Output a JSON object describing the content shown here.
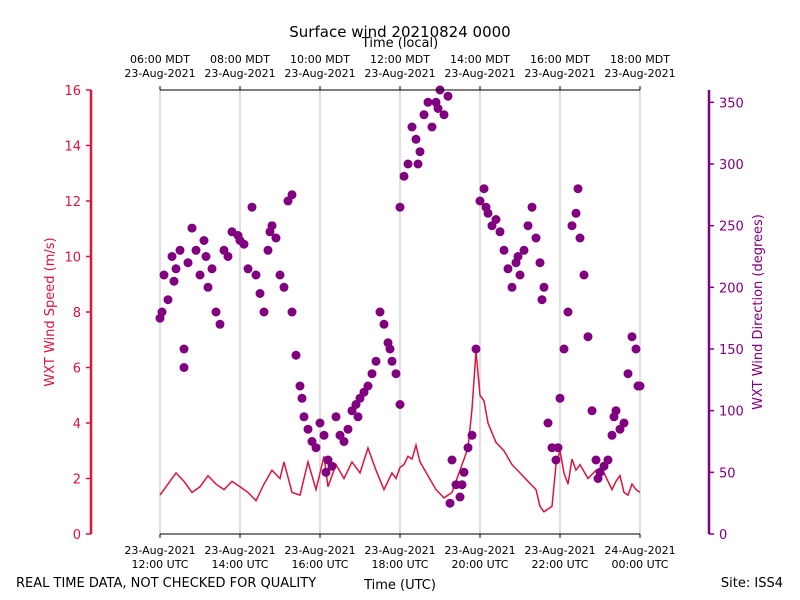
{
  "chart_data": {
    "type": "line+scatter",
    "title": "Surface wind 20210824 0000",
    "top_axis_label": "Time (local)",
    "top_ticks": [
      {
        "h": 12,
        "l1": "06:00 MDT",
        "l2": "23-Aug-2021"
      },
      {
        "h": 14,
        "l1": "08:00 MDT",
        "l2": "23-Aug-2021"
      },
      {
        "h": 16,
        "l1": "10:00 MDT",
        "l2": "23-Aug-2021"
      },
      {
        "h": 18,
        "l1": "12:00 MDT",
        "l2": "23-Aug-2021"
      },
      {
        "h": 20,
        "l1": "14:00 MDT",
        "l2": "23-Aug-2021"
      },
      {
        "h": 22,
        "l1": "16:00 MDT",
        "l2": "23-Aug-2021"
      },
      {
        "h": 24,
        "l1": "18:00 MDT",
        "l2": "23-Aug-2021"
      }
    ],
    "bottom_ticks": [
      {
        "h": 12,
        "l1": "23-Aug-2021",
        "l2": "12:00 UTC"
      },
      {
        "h": 14,
        "l1": "23-Aug-2021",
        "l2": "14:00 UTC"
      },
      {
        "h": 16,
        "l1": "23-Aug-2021",
        "l2": "16:00 UTC"
      },
      {
        "h": 18,
        "l1": "23-Aug-2021",
        "l2": "18:00 UTC"
      },
      {
        "h": 20,
        "l1": "23-Aug-2021",
        "l2": "20:00 UTC"
      },
      {
        "h": 22,
        "l1": "23-Aug-2021",
        "l2": "22:00 UTC"
      },
      {
        "h": 24,
        "l1": "24-Aug-2021",
        "l2": "00:00 UTC"
      }
    ],
    "xlabel": "Time (UTC)",
    "xlim": [
      12,
      24
    ],
    "y_left": {
      "label": "WXT Wind Speed (m/s)",
      "ylim": [
        0,
        16
      ],
      "ticks": [
        0,
        2,
        4,
        6,
        8,
        10,
        12,
        14,
        16
      ],
      "color": "#dc143c"
    },
    "y_right": {
      "label": "WXT Wind Direction (degrees)",
      "ylim": [
        0,
        360
      ],
      "ticks": [
        0,
        50,
        100,
        150,
        200,
        250,
        300,
        350
      ],
      "color": "#800080"
    },
    "series": [
      {
        "name": "WXT Wind Speed",
        "axis": "left",
        "style": "line",
        "color": "#dc143c",
        "points": [
          [
            12.0,
            1.4
          ],
          [
            12.2,
            1.8
          ],
          [
            12.4,
            2.2
          ],
          [
            12.6,
            1.9
          ],
          [
            12.8,
            1.5
          ],
          [
            13.0,
            1.7
          ],
          [
            13.2,
            2.1
          ],
          [
            13.4,
            1.8
          ],
          [
            13.6,
            1.6
          ],
          [
            13.8,
            1.9
          ],
          [
            14.0,
            1.7
          ],
          [
            14.2,
            1.5
          ],
          [
            14.4,
            1.2
          ],
          [
            14.6,
            1.8
          ],
          [
            14.8,
            2.3
          ],
          [
            15.0,
            2.0
          ],
          [
            15.1,
            2.6
          ],
          [
            15.3,
            1.5
          ],
          [
            15.5,
            1.4
          ],
          [
            15.7,
            2.6
          ],
          [
            15.9,
            1.6
          ],
          [
            16.1,
            2.8
          ],
          [
            16.2,
            1.7
          ],
          [
            16.4,
            2.5
          ],
          [
            16.6,
            2.0
          ],
          [
            16.8,
            2.6
          ],
          [
            17.0,
            2.2
          ],
          [
            17.2,
            3.1
          ],
          [
            17.4,
            2.3
          ],
          [
            17.6,
            1.6
          ],
          [
            17.8,
            2.2
          ],
          [
            17.9,
            2.0
          ],
          [
            18.0,
            2.4
          ],
          [
            18.1,
            2.5
          ],
          [
            18.2,
            2.8
          ],
          [
            18.3,
            2.7
          ],
          [
            18.4,
            3.2
          ],
          [
            18.5,
            2.6
          ],
          [
            18.7,
            2.1
          ],
          [
            18.9,
            1.6
          ],
          [
            19.1,
            1.3
          ],
          [
            19.3,
            1.5
          ],
          [
            19.5,
            2.3
          ],
          [
            19.6,
            2.7
          ],
          [
            19.7,
            3.1
          ],
          [
            19.8,
            4.5
          ],
          [
            19.9,
            6.6
          ],
          [
            20.0,
            5.0
          ],
          [
            20.1,
            4.8
          ],
          [
            20.2,
            4.0
          ],
          [
            20.4,
            3.3
          ],
          [
            20.6,
            3.0
          ],
          [
            20.8,
            2.5
          ],
          [
            21.0,
            2.2
          ],
          [
            21.2,
            1.9
          ],
          [
            21.4,
            1.6
          ],
          [
            21.5,
            1.0
          ],
          [
            21.6,
            0.8
          ],
          [
            21.7,
            0.9
          ],
          [
            21.8,
            1.0
          ],
          [
            21.9,
            2.5
          ],
          [
            22.0,
            3.0
          ],
          [
            22.1,
            2.2
          ],
          [
            22.2,
            1.8
          ],
          [
            22.3,
            2.7
          ],
          [
            22.4,
            2.3
          ],
          [
            22.5,
            2.5
          ],
          [
            22.7,
            2.0
          ],
          [
            22.9,
            2.3
          ],
          [
            23.1,
            2.2
          ],
          [
            23.3,
            1.6
          ],
          [
            23.4,
            1.9
          ],
          [
            23.5,
            2.1
          ],
          [
            23.6,
            1.5
          ],
          [
            23.7,
            1.4
          ],
          [
            23.8,
            1.8
          ],
          [
            23.9,
            1.6
          ],
          [
            24.0,
            1.5
          ]
        ]
      },
      {
        "name": "WXT Wind Direction",
        "axis": "right",
        "style": "scatter",
        "color": "#800080",
        "points": [
          [
            12.0,
            175
          ],
          [
            12.1,
            210
          ],
          [
            12.2,
            190
          ],
          [
            12.3,
            225
          ],
          [
            12.4,
            215
          ],
          [
            12.5,
            230
          ],
          [
            12.6,
            150
          ],
          [
            12.6,
            135
          ],
          [
            12.7,
            220
          ],
          [
            12.8,
            248
          ],
          [
            12.9,
            230
          ],
          [
            13.0,
            210
          ],
          [
            13.1,
            238
          ],
          [
            13.2,
            200
          ],
          [
            13.3,
            215
          ],
          [
            13.4,
            180
          ],
          [
            13.5,
            170
          ],
          [
            13.6,
            230
          ],
          [
            13.7,
            225
          ],
          [
            13.8,
            245
          ],
          [
            14.0,
            238
          ],
          [
            14.1,
            235
          ],
          [
            14.2,
            215
          ],
          [
            14.3,
            265
          ],
          [
            14.4,
            210
          ],
          [
            14.5,
            195
          ],
          [
            14.6,
            180
          ],
          [
            14.7,
            230
          ],
          [
            14.8,
            250
          ],
          [
            14.9,
            240
          ],
          [
            15.0,
            210
          ],
          [
            15.1,
            200
          ],
          [
            15.2,
            270
          ],
          [
            15.3,
            275
          ],
          [
            15.3,
            180
          ],
          [
            15.4,
            145
          ],
          [
            15.5,
            120
          ],
          [
            15.6,
            95
          ],
          [
            15.7,
            85
          ],
          [
            15.8,
            75
          ],
          [
            15.9,
            70
          ],
          [
            16.0,
            90
          ],
          [
            16.1,
            80
          ],
          [
            16.2,
            60
          ],
          [
            16.3,
            55
          ],
          [
            16.4,
            95
          ],
          [
            16.5,
            80
          ],
          [
            16.6,
            75
          ],
          [
            16.7,
            85
          ],
          [
            16.8,
            100
          ],
          [
            16.9,
            105
          ],
          [
            17.0,
            110
          ],
          [
            17.1,
            115
          ],
          [
            17.2,
            120
          ],
          [
            17.3,
            130
          ],
          [
            17.4,
            140
          ],
          [
            17.5,
            180
          ],
          [
            17.6,
            170
          ],
          [
            17.7,
            155
          ],
          [
            17.8,
            140
          ],
          [
            17.9,
            130
          ],
          [
            18.0,
            105
          ],
          [
            18.0,
            265
          ],
          [
            18.1,
            290
          ],
          [
            18.2,
            300
          ],
          [
            18.3,
            330
          ],
          [
            18.4,
            320
          ],
          [
            18.5,
            310
          ],
          [
            18.6,
            340
          ],
          [
            18.7,
            350
          ],
          [
            18.8,
            330
          ],
          [
            18.9,
            350
          ],
          [
            19.0,
            360
          ],
          [
            19.1,
            340
          ],
          [
            19.2,
            355
          ],
          [
            19.3,
            60
          ],
          [
            19.4,
            40
          ],
          [
            19.5,
            30
          ],
          [
            19.6,
            50
          ],
          [
            19.7,
            70
          ],
          [
            19.8,
            80
          ],
          [
            19.9,
            150
          ],
          [
            20.0,
            270
          ],
          [
            20.1,
            280
          ],
          [
            20.2,
            260
          ],
          [
            20.3,
            250
          ],
          [
            20.4,
            255
          ],
          [
            20.5,
            245
          ],
          [
            20.6,
            230
          ],
          [
            20.7,
            215
          ],
          [
            20.8,
            200
          ],
          [
            20.9,
            220
          ],
          [
            21.0,
            210
          ],
          [
            21.1,
            230
          ],
          [
            21.2,
            250
          ],
          [
            21.3,
            265
          ],
          [
            21.4,
            240
          ],
          [
            21.5,
            220
          ],
          [
            21.6,
            200
          ],
          [
            21.7,
            90
          ],
          [
            21.8,
            70
          ],
          [
            21.9,
            60
          ],
          [
            22.0,
            110
          ],
          [
            22.1,
            150
          ],
          [
            22.2,
            180
          ],
          [
            22.3,
            250
          ],
          [
            22.4,
            260
          ],
          [
            22.5,
            240
          ],
          [
            22.6,
            210
          ],
          [
            22.7,
            160
          ],
          [
            22.8,
            100
          ],
          [
            22.9,
            60
          ],
          [
            23.0,
            50
          ],
          [
            23.1,
            55
          ],
          [
            23.2,
            60
          ],
          [
            23.3,
            80
          ],
          [
            23.4,
            100
          ],
          [
            23.5,
            85
          ],
          [
            23.6,
            90
          ],
          [
            23.7,
            130
          ],
          [
            23.8,
            160
          ],
          [
            23.9,
            150
          ],
          [
            24.0,
            120
          ],
          [
            12.05,
            180
          ],
          [
            12.35,
            205
          ],
          [
            13.15,
            225
          ],
          [
            13.95,
            242
          ],
          [
            14.75,
            245
          ],
          [
            15.55,
            110
          ],
          [
            16.15,
            50
          ],
          [
            16.95,
            95
          ],
          [
            17.75,
            150
          ],
          [
            18.45,
            300
          ],
          [
            18.95,
            345
          ],
          [
            19.25,
            25
          ],
          [
            19.55,
            40
          ],
          [
            20.15,
            265
          ],
          [
            20.95,
            225
          ],
          [
            21.55,
            190
          ],
          [
            21.95,
            70
          ],
          [
            22.45,
            280
          ],
          [
            22.95,
            45
          ],
          [
            23.35,
            95
          ],
          [
            23.95,
            120
          ]
        ]
      }
    ]
  },
  "footer": {
    "left": "REAL TIME DATA, NOT CHECKED FOR QUALITY",
    "right": "Site: ISS4"
  }
}
